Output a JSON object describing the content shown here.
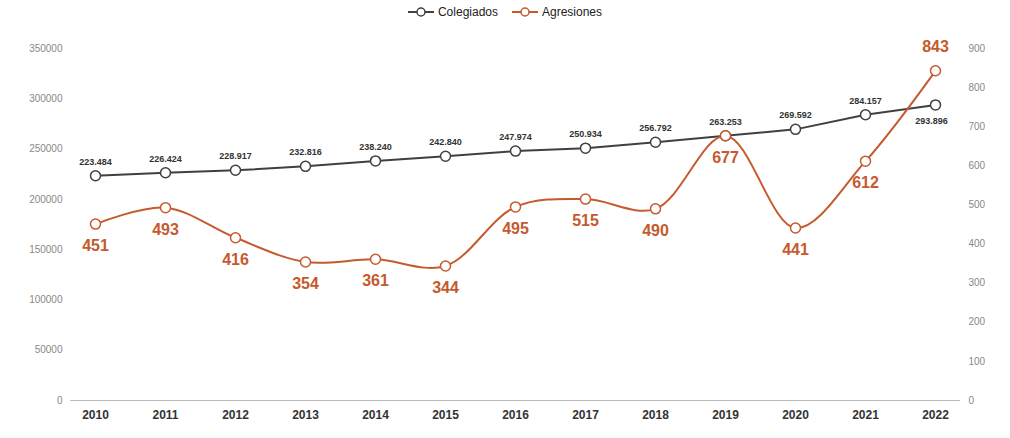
{
  "chart_data": {
    "type": "line",
    "categories": [
      "2010",
      "2011",
      "2012",
      "2013",
      "2014",
      "2015",
      "2016",
      "2017",
      "2018",
      "2019",
      "2020",
      "2021",
      "2022"
    ],
    "series": [
      {
        "name": "Colegiados",
        "color": "#404040",
        "marker": "circle",
        "values": [
          223484,
          226424,
          228917,
          232816,
          238240,
          242840,
          247974,
          250934,
          256792,
          263253,
          269592,
          284157,
          293896
        ],
        "value_labels": [
          "223.484",
          "226.424",
          "228.917",
          "232.816",
          "238.240",
          "242.840",
          "247.974",
          "250.934",
          "256.792",
          "263.253",
          "269.592",
          "284.157",
          "293.896"
        ]
      },
      {
        "name": "Agresiones",
        "color": "#c55a2e",
        "marker": "circle",
        "axis": "y2",
        "values": [
          451,
          493,
          416,
          354,
          361,
          344,
          495,
          515,
          490,
          677,
          441,
          612,
          843
        ]
      }
    ],
    "ylim": [
      0,
      350000
    ],
    "yticks": [
      0,
      50000,
      100000,
      150000,
      200000,
      250000,
      300000,
      350000
    ],
    "y2lim": [
      0,
      900
    ],
    "y2ticks": [
      0,
      100,
      200,
      300,
      400,
      500,
      600,
      700,
      800,
      900
    ],
    "data_labels": true,
    "legend": "top",
    "grid": false
  }
}
